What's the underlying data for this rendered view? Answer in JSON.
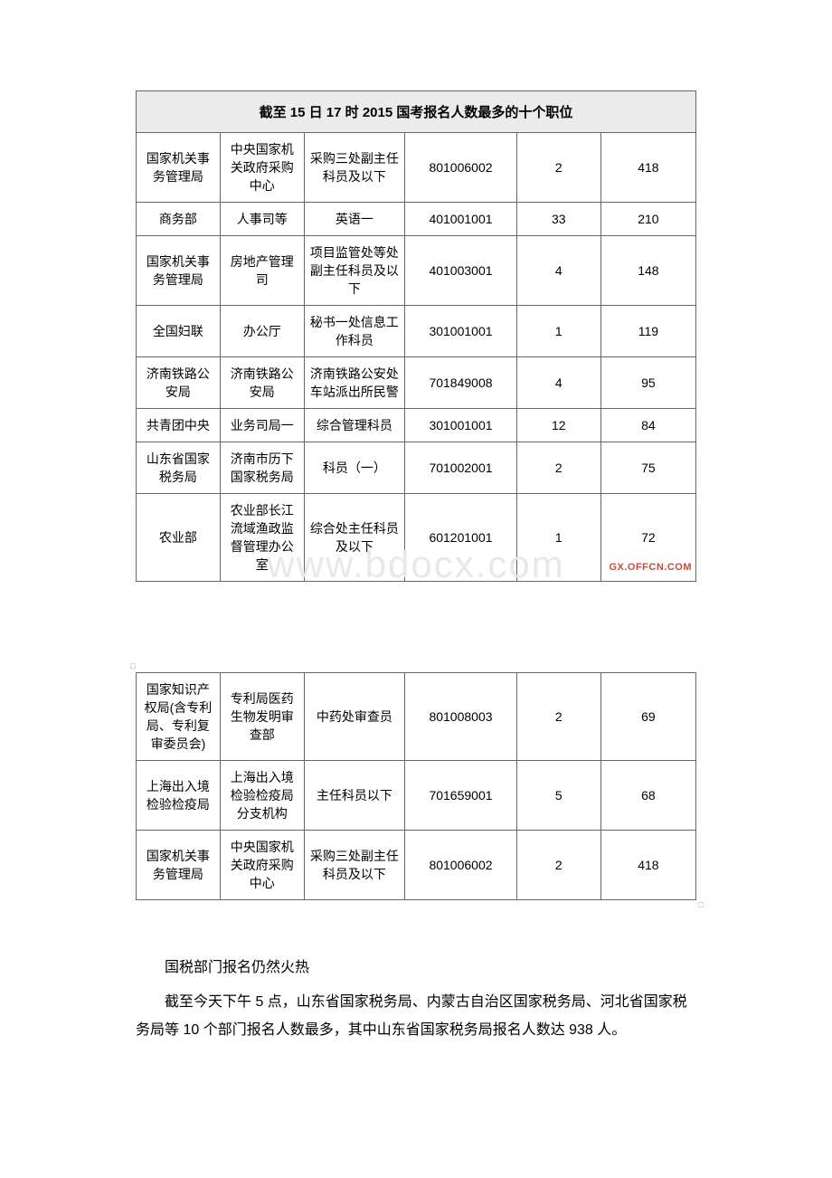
{
  "tableTitle": "截至 15 日 17 时 2015 国考报名人数最多的十个职位",
  "watermarkSmall": "GX.OFFCN.COM",
  "watermarkBig": "www.bdocx.com",
  "table1": {
    "rows": [
      {
        "c1": "国家机关事务管理局",
        "c2": "中央国家机关政府采购中心",
        "c3": "采购三处副主任科员及以下",
        "c4": "801006002",
        "c5": "2",
        "c6": "418"
      },
      {
        "c1": "商务部",
        "c2": "人事司等",
        "c3": "英语一",
        "c4": "401001001",
        "c5": "33",
        "c6": "210"
      },
      {
        "c1": "国家机关事务管理局",
        "c2": "房地产管理司",
        "c3": "项目监管处等处副主任科员及以下",
        "c4": "401003001",
        "c5": "4",
        "c6": "148"
      },
      {
        "c1": "全国妇联",
        "c2": "办公厅",
        "c3": "秘书一处信息工作科员",
        "c4": "301001001",
        "c5": "1",
        "c6": "119"
      },
      {
        "c1": "济南铁路公安局",
        "c2": "济南铁路公安局",
        "c3": "济南铁路公安处车站派出所民警",
        "c4": "701849008",
        "c5": "4",
        "c6": "95"
      },
      {
        "c1": "共青团中央",
        "c2": "业务司局一",
        "c3": "综合管理科员",
        "c4": "301001001",
        "c5": "12",
        "c6": "84"
      },
      {
        "c1": "山东省国家税务局",
        "c2": "济南市历下国家税务局",
        "c3": "科员（一）",
        "c4": "701002001",
        "c5": "2",
        "c6": "75"
      },
      {
        "c1": "农业部",
        "c2": "农业部长江流域渔政监督管理办公室",
        "c3": "综合处主任科员及以下",
        "c4": "601201001",
        "c5": "1",
        "c6": "72"
      }
    ]
  },
  "table2": {
    "rows": [
      {
        "c1": "国家知识产权局(含专利局、专利复审委员会)",
        "c2": "专利局医药生物发明审查部",
        "c3": "中药处审查员",
        "c4": "801008003",
        "c5": "2",
        "c6": "69"
      },
      {
        "c1": "上海出入境检验检疫局",
        "c2": "上海出入境检验检疫局分支机构",
        "c3": "主任科员以下",
        "c4": "701659001",
        "c5": "5",
        "c6": "68"
      },
      {
        "c1": "国家机关事务管理局",
        "c2": "中央国家机关政府采购中心",
        "c3": "采购三处副主任科员及以下",
        "c4": "801006002",
        "c5": "2",
        "c6": "418"
      }
    ]
  },
  "paragraphs": {
    "p1": "国税部门报名仍然火热",
    "p2": "截至今天下午 5 点，山东省国家税务局、内蒙古自治区国家税务局、河北省国家税务局等 10 个部门报名人数最多，其中山东省国家税务局报名人数达 938 人。"
  },
  "colors": {
    "headerBg": "#ebebeb",
    "border": "#666666",
    "text": "#000000",
    "watermarkSmall": "#c84b3a",
    "watermarkBig": "#e8e8e8"
  }
}
